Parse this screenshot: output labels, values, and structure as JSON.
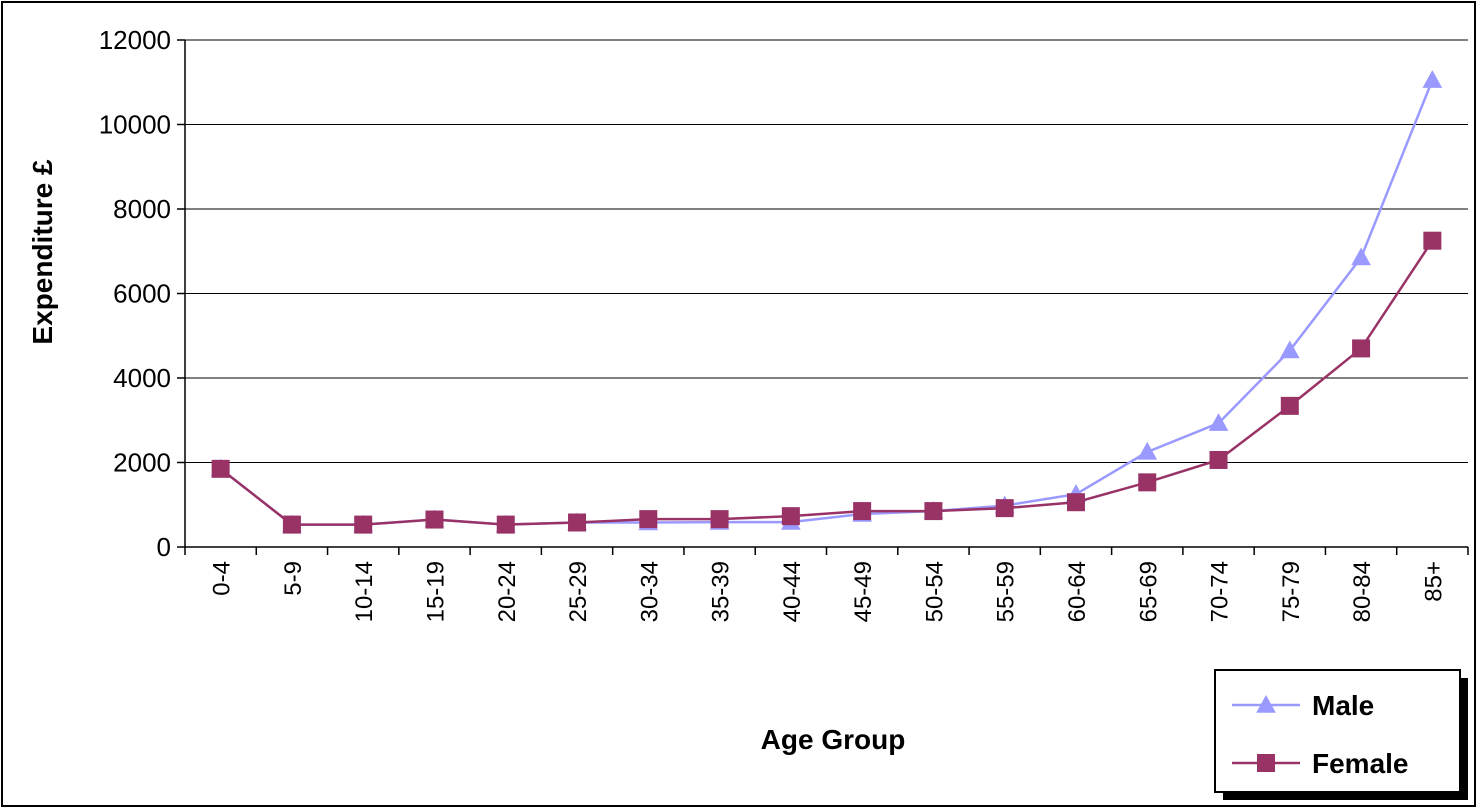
{
  "chart_data": {
    "type": "line",
    "title": "",
    "xlabel": "Age Group",
    "ylabel": "Expenditure £",
    "ylim": [
      0,
      12000
    ],
    "yticks": [
      0,
      2000,
      4000,
      6000,
      8000,
      10000,
      12000
    ],
    "grid": "horizontal",
    "legend_position": "bottom-right",
    "categories": [
      "0-4",
      "5-9",
      "10-14",
      "15-19",
      "20-24",
      "25-29",
      "30-34",
      "35-39",
      "40-44",
      "45-49",
      "50-54",
      "55-59",
      "60-64",
      "65-69",
      "70-74",
      "75-79",
      "80-84",
      "85+"
    ],
    "series": [
      {
        "name": "Male",
        "color": "#9999ff",
        "marker": "triangle",
        "values": [
          1850,
          530,
          530,
          650,
          530,
          580,
          580,
          590,
          590,
          780,
          850,
          980,
          1250,
          2250,
          2930,
          4650,
          6850,
          11050
        ]
      },
      {
        "name": "Female",
        "color": "#993366",
        "marker": "square",
        "values": [
          1850,
          530,
          530,
          650,
          530,
          580,
          660,
          660,
          730,
          850,
          850,
          920,
          1060,
          1530,
          2060,
          3340,
          4700,
          7250
        ]
      }
    ]
  }
}
